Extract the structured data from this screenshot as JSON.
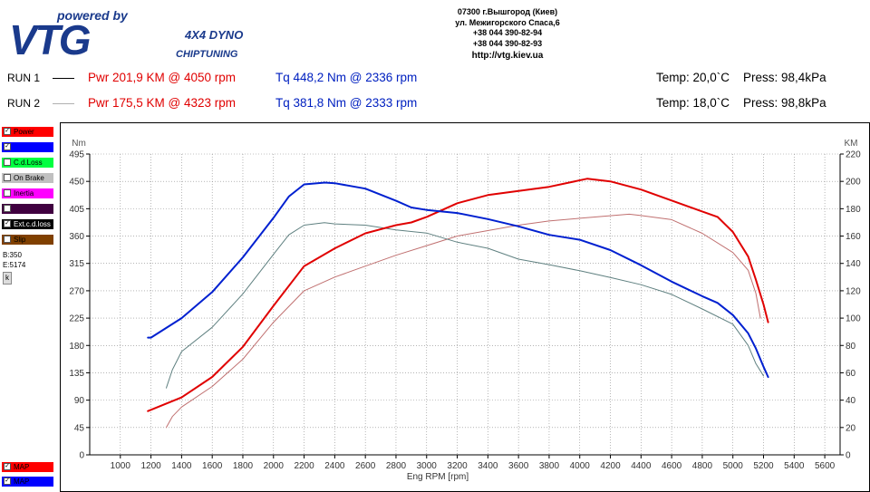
{
  "header": {
    "logo": {
      "brand": "VTG",
      "tagline": "powered by",
      "product": "4X4 DYNO",
      "subtitle": "CHIPTUNING"
    },
    "contact": {
      "address_line1": "07300 г.Вышгород (Киев)",
      "address_line2": "ул. Межигорского Спаса,6",
      "phone1": "+38 044 390-82-94",
      "phone2": "+38 044 390-82-93",
      "url": "http://vtg.kiev.ua"
    }
  },
  "runs": [
    {
      "label": "RUN 1",
      "line_color": "#000000",
      "power": "Pwr  201,9 KM @ 4050 rpm",
      "torque": "Tq  448,2 Nm @ 2336 rpm",
      "conditions": "Temp: 20,0`C    Press: 98,4kPa"
    },
    {
      "label": "RUN 2",
      "line_color": "#b0b0b0",
      "power": "Pwr  175,5 KM @ 4323 rpm",
      "torque": "Tq  381,8 Nm @ 2333 rpm",
      "conditions": "Temp: 18,0`C    Press: 98,8kPa"
    }
  ],
  "legend": {
    "items": [
      {
        "label": "Power",
        "color": "#ff0000",
        "checked": true,
        "text_color": "#000000"
      },
      {
        "label": "Tq",
        "color": "#0000ff",
        "checked": true,
        "text_color": "#0000ff"
      },
      {
        "label": "C.d.Loss",
        "color": "#00ff40",
        "checked": false,
        "text_color": "#000000"
      },
      {
        "label": "On Brake",
        "color": "#c0c0c0",
        "checked": false,
        "text_color": "#000000"
      },
      {
        "label": "Inertia",
        "color": "#ff00ff",
        "checked": false,
        "text_color": "#000000"
      },
      {
        "label": "Whl.Power",
        "color": "#400040",
        "checked": false,
        "text_color": "#400040"
      },
      {
        "label": "Ext.c.d.loss",
        "color": "#000000",
        "checked": true,
        "text_color": "#ffffff"
      },
      {
        "label": "Slip",
        "color": "#804000",
        "checked": false,
        "text_color": "#000000"
      }
    ],
    "b_value": "B:350",
    "e_value": "E:5174",
    "k_button": "k",
    "bottom_items": [
      {
        "label": "MAP",
        "color": "#ff0000",
        "checked": true
      },
      {
        "label": "MAP",
        "color": "#0000ff",
        "checked": true
      }
    ]
  },
  "chart_data": {
    "type": "line",
    "xlabel": "Eng RPM [rpm]",
    "ylabel_left": "Nm",
    "ylabel_right": "KM",
    "xlim": [
      800,
      5700
    ],
    "ylim_left": [
      0,
      495
    ],
    "ylim_right": [
      0,
      220
    ],
    "x_ticks": [
      1000,
      1200,
      1400,
      1600,
      1800,
      2000,
      2200,
      2400,
      2600,
      2800,
      3000,
      3200,
      3400,
      3600,
      3800,
      4000,
      4200,
      4400,
      4600,
      4800,
      5000,
      5200,
      5400,
      5600
    ],
    "y_ticks_left": [
      0,
      45,
      90,
      135,
      180,
      225,
      270,
      315,
      360,
      405,
      450,
      495
    ],
    "y_ticks_right": [
      0,
      20,
      40,
      60,
      80,
      100,
      120,
      140,
      160,
      180,
      200,
      220
    ],
    "grid": true,
    "series": [
      {
        "name": "Tq",
        "run": "RUN 1",
        "axis": "left",
        "color": "#0020d0",
        "width": 2,
        "points": [
          [
            1180,
            193
          ],
          [
            1200,
            193
          ],
          [
            1400,
            225
          ],
          [
            1600,
            268
          ],
          [
            1800,
            325
          ],
          [
            2000,
            390
          ],
          [
            2100,
            425
          ],
          [
            2200,
            445
          ],
          [
            2336,
            448
          ],
          [
            2400,
            447
          ],
          [
            2600,
            438
          ],
          [
            2800,
            418
          ],
          [
            2900,
            407
          ],
          [
            3000,
            403
          ],
          [
            3200,
            398
          ],
          [
            3400,
            388
          ],
          [
            3600,
            376
          ],
          [
            3800,
            362
          ],
          [
            4000,
            354
          ],
          [
            4200,
            337
          ],
          [
            4400,
            312
          ],
          [
            4600,
            285
          ],
          [
            4800,
            261
          ],
          [
            4900,
            250
          ],
          [
            5000,
            230
          ],
          [
            5100,
            200
          ],
          [
            5150,
            175
          ],
          [
            5200,
            145
          ],
          [
            5230,
            128
          ]
        ]
      },
      {
        "name": "Power",
        "run": "RUN 1",
        "axis": "right",
        "color": "#e00000",
        "width": 2,
        "points": [
          [
            1180,
            32
          ],
          [
            1400,
            42
          ],
          [
            1600,
            57
          ],
          [
            1800,
            79
          ],
          [
            2000,
            109
          ],
          [
            2200,
            138
          ],
          [
            2400,
            151
          ],
          [
            2600,
            162
          ],
          [
            2800,
            168
          ],
          [
            2900,
            170
          ],
          [
            3000,
            174
          ],
          [
            3200,
            184
          ],
          [
            3400,
            190
          ],
          [
            3600,
            193
          ],
          [
            3800,
            196
          ],
          [
            4050,
            202
          ],
          [
            4200,
            200
          ],
          [
            4400,
            194
          ],
          [
            4600,
            186
          ],
          [
            4800,
            178
          ],
          [
            4900,
            174
          ],
          [
            5000,
            163
          ],
          [
            5100,
            145
          ],
          [
            5150,
            128
          ],
          [
            5200,
            110
          ],
          [
            5230,
            97
          ]
        ]
      },
      {
        "name": "Tq",
        "run": "RUN 2",
        "axis": "left",
        "color": "#5f8080",
        "width": 1,
        "points": [
          [
            1300,
            110
          ],
          [
            1340,
            140
          ],
          [
            1400,
            170
          ],
          [
            1600,
            210
          ],
          [
            1800,
            265
          ],
          [
            2000,
            330
          ],
          [
            2100,
            362
          ],
          [
            2200,
            378
          ],
          [
            2333,
            382
          ],
          [
            2400,
            380
          ],
          [
            2600,
            378
          ],
          [
            2800,
            370
          ],
          [
            3000,
            365
          ],
          [
            3200,
            350
          ],
          [
            3400,
            340
          ],
          [
            3600,
            322
          ],
          [
            3800,
            313
          ],
          [
            4000,
            303
          ],
          [
            4200,
            292
          ],
          [
            4400,
            280
          ],
          [
            4600,
            264
          ],
          [
            4800,
            240
          ],
          [
            5000,
            215
          ],
          [
            5100,
            180
          ],
          [
            5150,
            150
          ],
          [
            5200,
            130
          ]
        ]
      },
      {
        "name": "Power",
        "run": "RUN 2",
        "axis": "right",
        "color": "#c07070",
        "width": 1,
        "points": [
          [
            1300,
            20
          ],
          [
            1340,
            28
          ],
          [
            1400,
            35
          ],
          [
            1600,
            50
          ],
          [
            1800,
            70
          ],
          [
            2000,
            97
          ],
          [
            2200,
            120
          ],
          [
            2400,
            130
          ],
          [
            2600,
            138
          ],
          [
            2800,
            146
          ],
          [
            3000,
            153
          ],
          [
            3200,
            160
          ],
          [
            3400,
            164
          ],
          [
            3600,
            168
          ],
          [
            3800,
            171
          ],
          [
            4000,
            173
          ],
          [
            4323,
            176
          ],
          [
            4400,
            175
          ],
          [
            4600,
            172
          ],
          [
            4800,
            162
          ],
          [
            5000,
            148
          ],
          [
            5100,
            135
          ],
          [
            5150,
            118
          ],
          [
            5180,
            100
          ]
        ]
      }
    ]
  }
}
